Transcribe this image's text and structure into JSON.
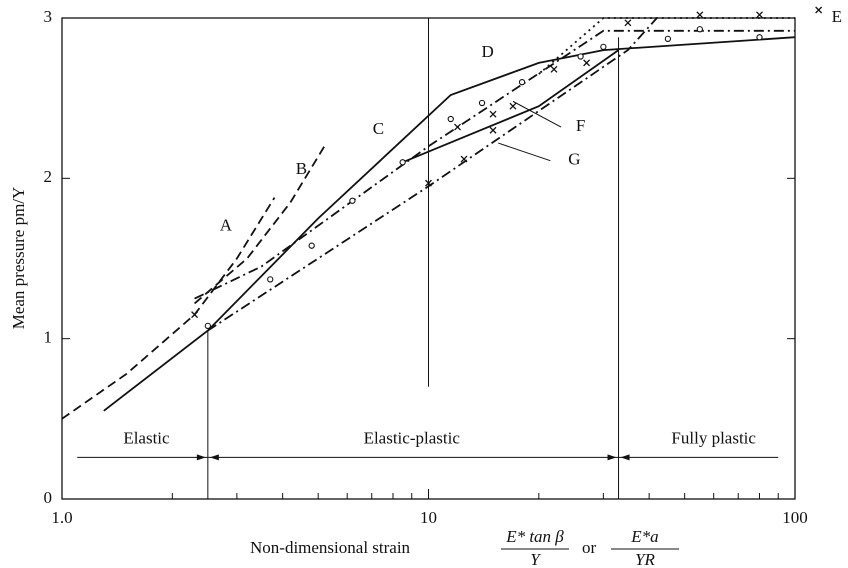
{
  "chart_data": {
    "type": "line",
    "xlabel": {
      "prefix": "Non-dimensional strain",
      "frac1": [
        "E* tan β",
        "Y"
      ],
      "or": "or",
      "frac2": [
        "E*a",
        "YR"
      ]
    },
    "ylabel": "Mean pressure pm/Y",
    "xlog": true,
    "xlim": [
      1,
      100
    ],
    "ylim": [
      0,
      3
    ],
    "xticks": [
      {
        "value": 1,
        "label": "1.0"
      },
      10,
      100
    ],
    "xminor": [
      2,
      3,
      4,
      5,
      6,
      7,
      8,
      9,
      20,
      30,
      40,
      50,
      60,
      70,
      80,
      90
    ],
    "yticks": [
      0,
      1,
      2,
      3
    ],
    "color": "#111111",
    "series": [
      {
        "style": "dashed",
        "x": [
          1.0,
          1.5,
          2.3,
          3.0,
          3.8
        ],
        "values": [
          0.5,
          0.78,
          1.15,
          1.5,
          1.88
        ]
      },
      {
        "style": "dashed",
        "x": [
          2.3,
          3.2,
          4.2,
          5.2
        ],
        "values": [
          1.22,
          1.5,
          1.85,
          2.2
        ]
      },
      {
        "style": "solid",
        "x": [
          1.3,
          2.5,
          5,
          11.5,
          20,
          30,
          100
        ],
        "values": [
          0.55,
          1.05,
          1.75,
          2.52,
          2.72,
          2.8,
          2.88
        ]
      },
      {
        "style": "dashdot",
        "x": [
          2.3,
          3.5,
          10,
          30,
          100
        ],
        "values": [
          1.25,
          1.45,
          2.2,
          2.92,
          2.92
        ]
      },
      {
        "style": "dashdot",
        "x": [
          2.5,
          10,
          35,
          42
        ],
        "values": [
          1.05,
          1.95,
          2.8,
          3.0
        ]
      },
      {
        "style": "solid",
        "x": [
          8.5,
          20,
          33
        ],
        "values": [
          2.1,
          2.45,
          2.8
        ]
      },
      {
        "style": "dotted",
        "x": [
          20,
          30,
          100
        ],
        "values": [
          2.65,
          3.0,
          3.0
        ]
      }
    ],
    "crosses": {
      "x": [
        2.3,
        10,
        12.5,
        12,
        15,
        15,
        17,
        22,
        27,
        35,
        55,
        80,
        116
      ],
      "values": [
        1.15,
        1.97,
        2.12,
        2.32,
        2.3,
        2.4,
        2.45,
        2.68,
        2.72,
        2.97,
        3.02,
        3.02,
        3.05
      ]
    },
    "circles": {
      "x": [
        2.5,
        3.7,
        4.8,
        6.2,
        8.5,
        11.5,
        14,
        18,
        26,
        30,
        45,
        55,
        80
      ],
      "values": [
        1.08,
        1.37,
        1.58,
        1.86,
        2.1,
        2.37,
        2.47,
        2.6,
        2.76,
        2.82,
        2.87,
        2.93,
        2.88
      ]
    },
    "annotations": [
      "A",
      "B",
      "C",
      "D",
      "E",
      "F",
      "G",
      "Elastic",
      "Elastic-plastic",
      "Fully plastic"
    ]
  }
}
